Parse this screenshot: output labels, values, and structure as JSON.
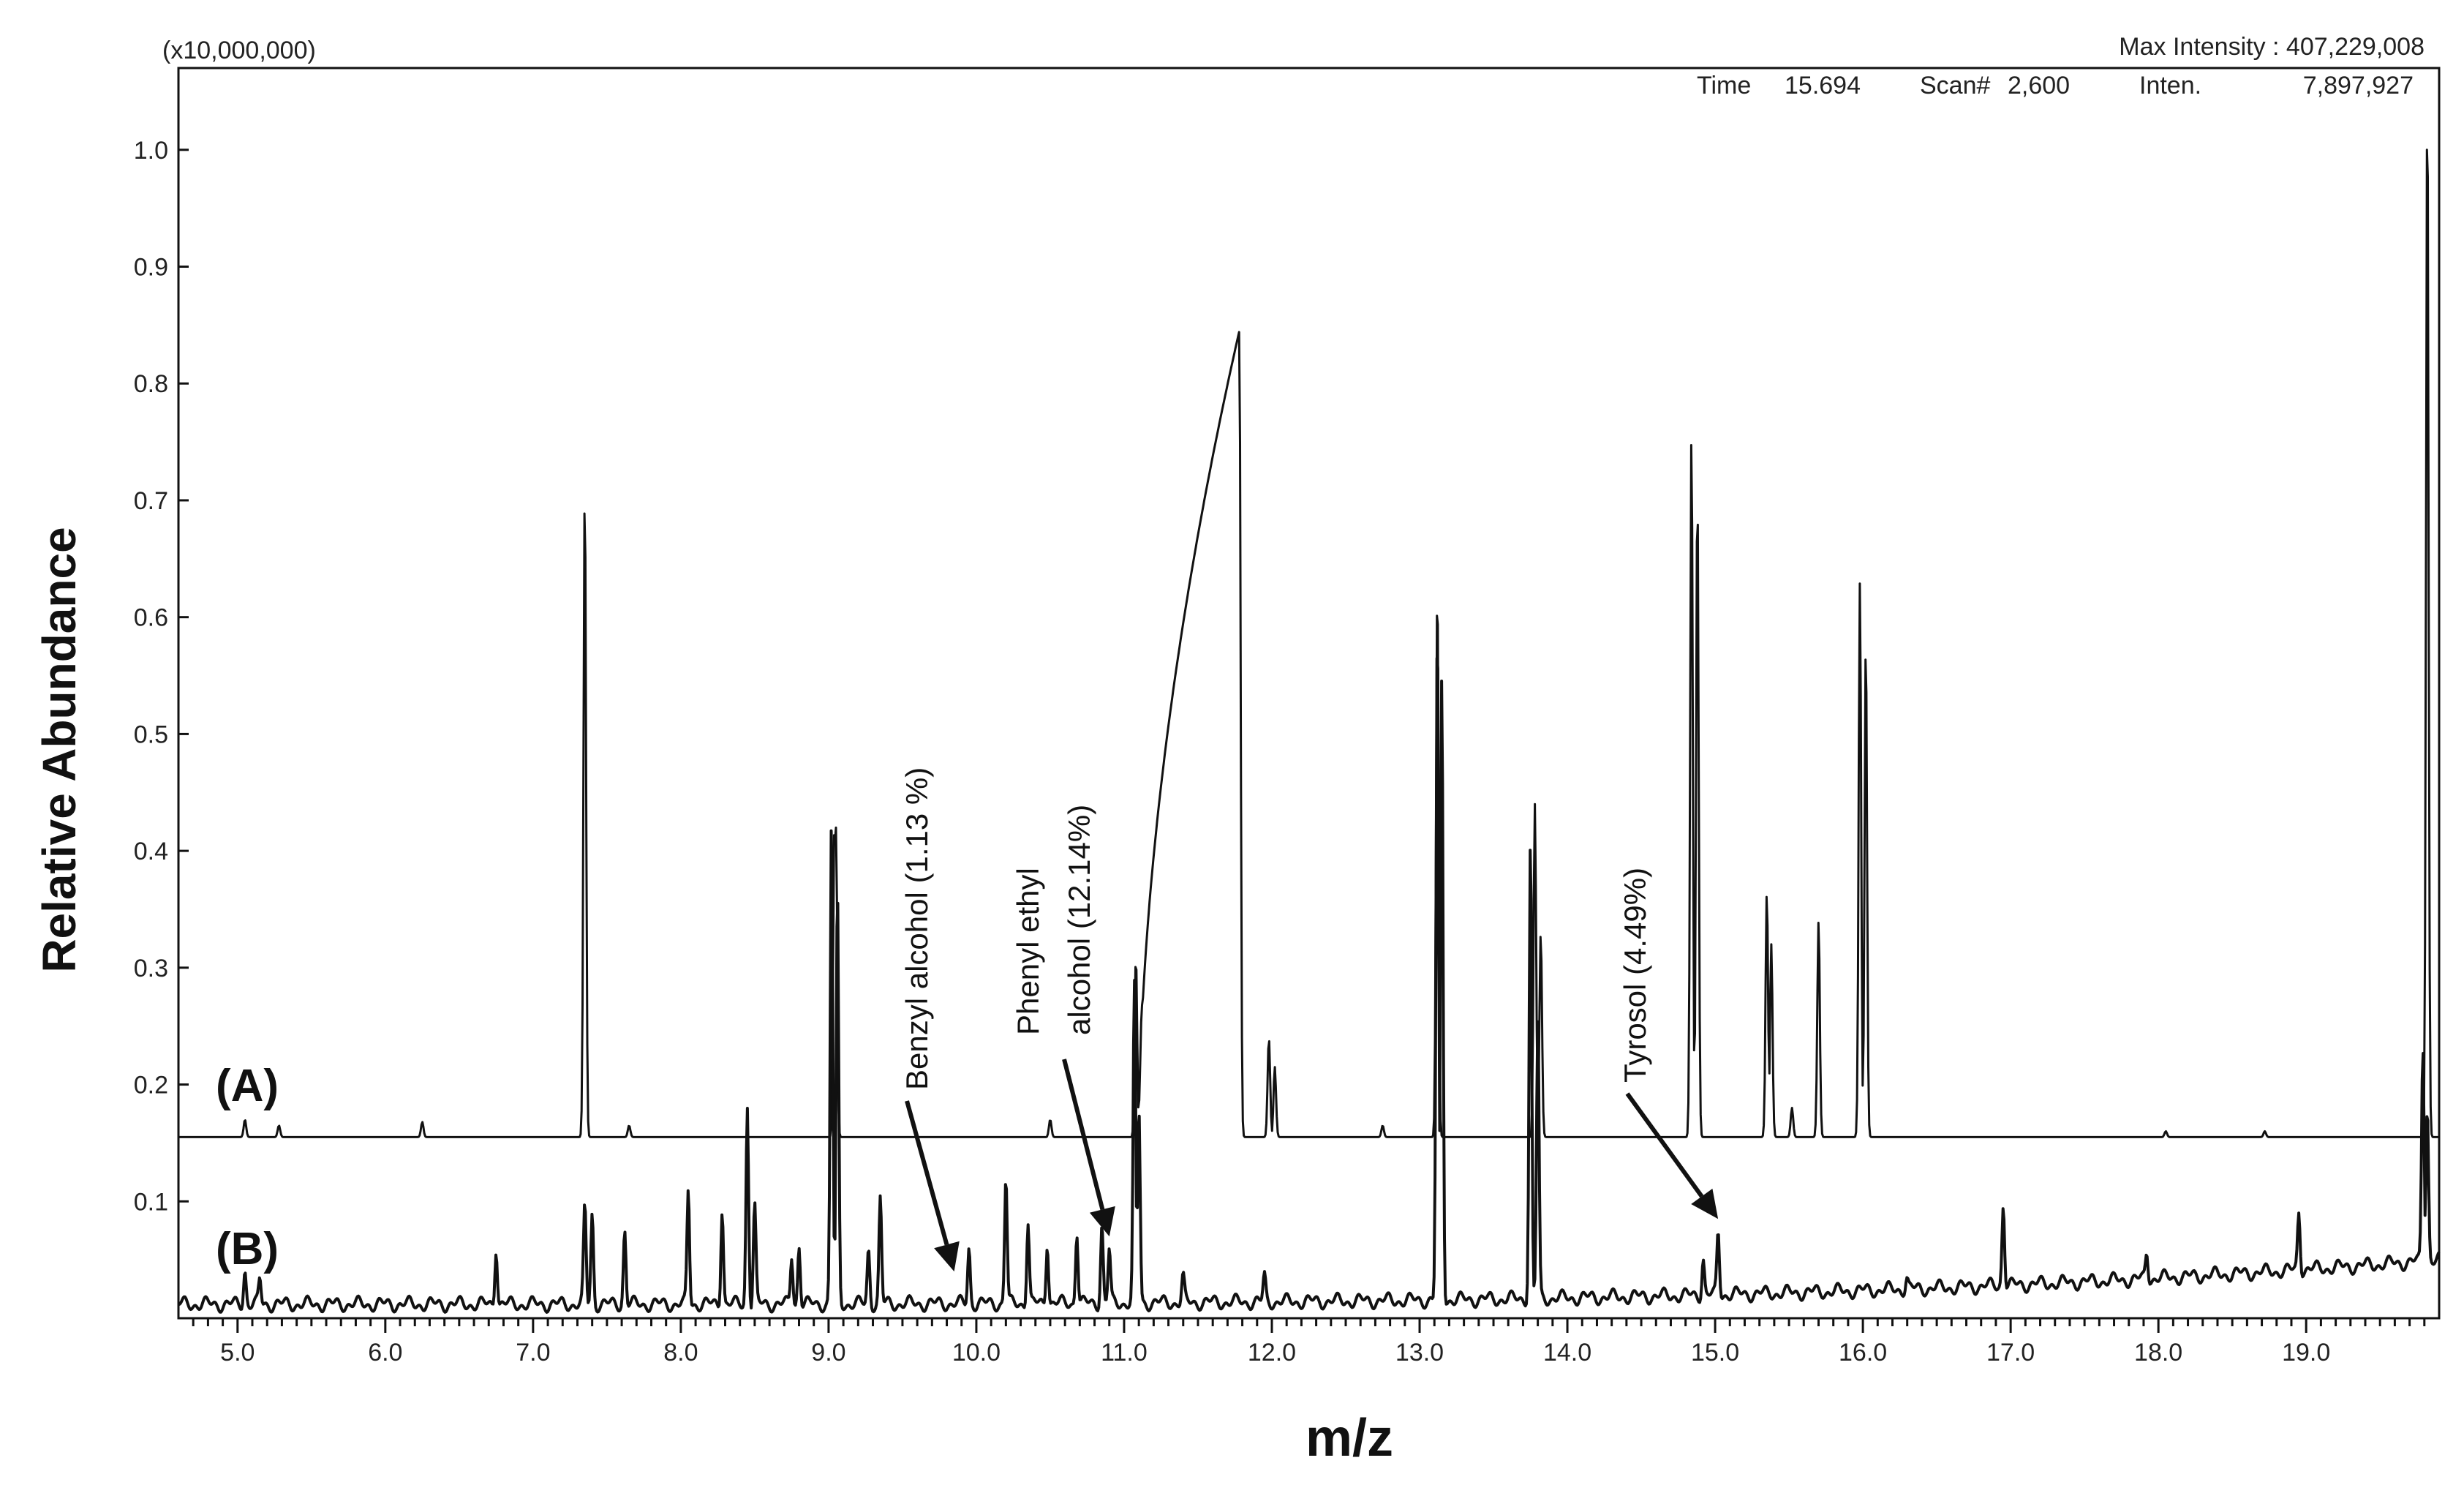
{
  "header": {
    "scale_note": "(x10,000,000)",
    "max_intensity": "Max Intensity : 407,229,008",
    "time_label": "Time",
    "time_value": "15.694",
    "scan_label": "Scan#",
    "scan_value": "2,600",
    "inten_label": "Inten.",
    "inten_value": "7,897,927"
  },
  "chart_data": {
    "type": "line",
    "xlabel": "m/z",
    "ylabel": "Relative Abundance",
    "xlim": [
      4.6,
      19.9
    ],
    "ylim": [
      0.0,
      1.07
    ],
    "grid": false,
    "x_ticks": [
      5.0,
      6.0,
      7.0,
      8.0,
      9.0,
      10.0,
      11.0,
      12.0,
      13.0,
      14.0,
      15.0,
      16.0,
      17.0,
      18.0,
      19.0
    ],
    "x_tick_labels": [
      "5.0",
      "6.0",
      "7.0",
      "8.0",
      "9.0",
      "10.0",
      "11.0",
      "12.0",
      "13.0",
      "14.0",
      "15.0",
      "16.0",
      "17.0",
      "18.0",
      "19.0"
    ],
    "y_ticks": [
      0.1,
      0.2,
      0.3,
      0.4,
      0.5,
      0.6,
      0.7,
      0.8,
      0.9,
      1.0
    ],
    "y_tick_labels": [
      "0.1",
      "0.2",
      "0.3",
      "0.4",
      "0.5",
      "0.6",
      "0.7",
      "0.8",
      "0.9",
      "1.0"
    ],
    "series": [
      {
        "name": "(A)",
        "color": "#111111",
        "baseline": 0.155,
        "peaks": [
          [
            5.05,
            0.17
          ],
          [
            5.28,
            0.165
          ],
          [
            6.25,
            0.168
          ],
          [
            7.35,
            0.71
          ],
          [
            7.65,
            0.165
          ],
          [
            9.04,
            0.43
          ],
          [
            9.05,
            0.42
          ],
          [
            10.5,
            0.17
          ],
          [
            11.08,
            0.31
          ],
          [
            11.12,
            0.27
          ],
          [
            11.78,
            0.845
          ],
          [
            11.98,
            0.24
          ],
          [
            12.02,
            0.215
          ],
          [
            12.75,
            0.165
          ],
          [
            13.12,
            0.63
          ],
          [
            13.78,
            0.44
          ],
          [
            13.82,
            0.33
          ],
          [
            14.84,
            0.76
          ],
          [
            14.88,
            0.71
          ],
          [
            15.35,
            0.365
          ],
          [
            15.38,
            0.32
          ],
          [
            15.52,
            0.18
          ],
          [
            15.7,
            0.34
          ],
          [
            15.98,
            0.63
          ],
          [
            16.02,
            0.58
          ],
          [
            18.05,
            0.16
          ],
          [
            18.72,
            0.16
          ],
          [
            19.82,
            1.05
          ]
        ],
        "hump": {
          "start": 11.1,
          "end": 11.78,
          "peak": 0.845
        }
      },
      {
        "name": "(B)",
        "color": "#111111",
        "baseline_start": 0.012,
        "baseline_end": 0.05,
        "peaks": [
          [
            5.05,
            0.04
          ],
          [
            5.15,
            0.035
          ],
          [
            6.75,
            0.055
          ],
          [
            7.35,
            0.1
          ],
          [
            7.4,
            0.09
          ],
          [
            7.62,
            0.075
          ],
          [
            8.05,
            0.11
          ],
          [
            8.28,
            0.09
          ],
          [
            8.45,
            0.18
          ],
          [
            8.5,
            0.1
          ],
          [
            8.75,
            0.05
          ],
          [
            8.8,
            0.06
          ],
          [
            9.02,
            0.43
          ],
          [
            9.06,
            0.37
          ],
          [
            9.27,
            0.06
          ],
          [
            9.35,
            0.105
          ],
          [
            9.95,
            0.06
          ],
          [
            10.2,
            0.12
          ],
          [
            10.35,
            0.08
          ],
          [
            10.48,
            0.06
          ],
          [
            10.68,
            0.07
          ],
          [
            10.85,
            0.08
          ],
          [
            10.9,
            0.06
          ],
          [
            11.07,
            0.29
          ],
          [
            11.1,
            0.18
          ],
          [
            11.4,
            0.04
          ],
          [
            11.95,
            0.04
          ],
          [
            13.12,
            0.6
          ],
          [
            13.15,
            0.55
          ],
          [
            13.75,
            0.41
          ],
          [
            13.8,
            0.255
          ],
          [
            14.92,
            0.05
          ],
          [
            15.02,
            0.075
          ],
          [
            16.3,
            0.035
          ],
          [
            16.95,
            0.095
          ],
          [
            17.92,
            0.055
          ],
          [
            18.95,
            0.09
          ],
          [
            19.79,
            0.23
          ],
          [
            19.82,
            0.18
          ]
        ]
      }
    ],
    "annotations": [
      {
        "text": "Benzyl alcohol (1.13 %)",
        "target": [
          9.85,
          0.04
        ]
      },
      {
        "text": "Phenyl ethyl",
        "text2": "alcohol (12.14%)",
        "target": [
          10.9,
          0.07
        ]
      },
      {
        "text": "Tyrosol (4.49%)",
        "target": [
          15.02,
          0.085
        ]
      }
    ]
  }
}
